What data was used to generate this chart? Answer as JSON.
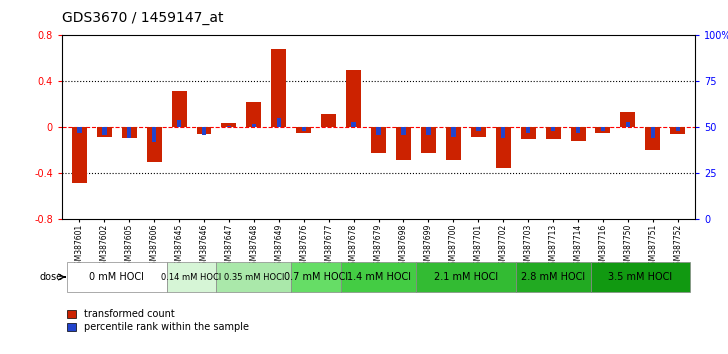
{
  "title": "GDS3670 / 1459147_at",
  "samples": [
    "GSM387601",
    "GSM387602",
    "GSM387605",
    "GSM387606",
    "GSM387645",
    "GSM387646",
    "GSM387647",
    "GSM387648",
    "GSM387649",
    "GSM387676",
    "GSM387677",
    "GSM387678",
    "GSM387679",
    "GSM387698",
    "GSM387699",
    "GSM387700",
    "GSM387701",
    "GSM387702",
    "GSM387703",
    "GSM387713",
    "GSM387714",
    "GSM387716",
    "GSM387750",
    "GSM387751",
    "GSM387752"
  ],
  "red_values": [
    -0.48,
    -0.08,
    -0.09,
    -0.3,
    0.32,
    -0.06,
    0.04,
    0.22,
    0.68,
    -0.05,
    0.12,
    0.5,
    -0.22,
    -0.28,
    -0.22,
    -0.28,
    -0.08,
    -0.35,
    -0.1,
    -0.1,
    -0.12,
    -0.05,
    0.13,
    -0.2,
    -0.06
  ],
  "blue_raw": [
    47,
    46,
    44,
    42,
    54,
    46,
    51,
    52,
    55,
    48,
    50,
    53,
    46,
    46,
    46,
    45,
    48,
    44,
    47,
    48,
    47,
    48,
    53,
    44,
    48
  ],
  "dose_groups": [
    {
      "label": "0 mM HOCl",
      "start": 0,
      "end": 4,
      "color": "#ffffff"
    },
    {
      "label": "0.14 mM HOCl",
      "start": 4,
      "end": 6,
      "color": "#d6f5d6"
    },
    {
      "label": "0.35 mM HOCl",
      "start": 6,
      "end": 9,
      "color": "#aae8aa"
    },
    {
      "label": "0.7 mM HOCl",
      "start": 9,
      "end": 11,
      "color": "#66dd66"
    },
    {
      "label": "1.4 mM HOCl",
      "start": 11,
      "end": 14,
      "color": "#44cc44"
    },
    {
      "label": "2.1 mM HOCl",
      "start": 14,
      "end": 18,
      "color": "#33bb33"
    },
    {
      "label": "2.8 mM HOCl",
      "start": 18,
      "end": 21,
      "color": "#22aa22"
    },
    {
      "label": "3.5 mM HOCl",
      "start": 21,
      "end": 25,
      "color": "#119911"
    }
  ],
  "ylim_left": [
    -0.8,
    0.8
  ],
  "ylim_right": [
    0,
    100
  ],
  "yticks_left": [
    -0.8,
    -0.4,
    0.0,
    0.4,
    0.8
  ],
  "yticks_right": [
    0,
    25,
    50,
    75,
    100
  ],
  "red_color": "#cc2200",
  "blue_color": "#2244cc",
  "background_color": "#ffffff"
}
